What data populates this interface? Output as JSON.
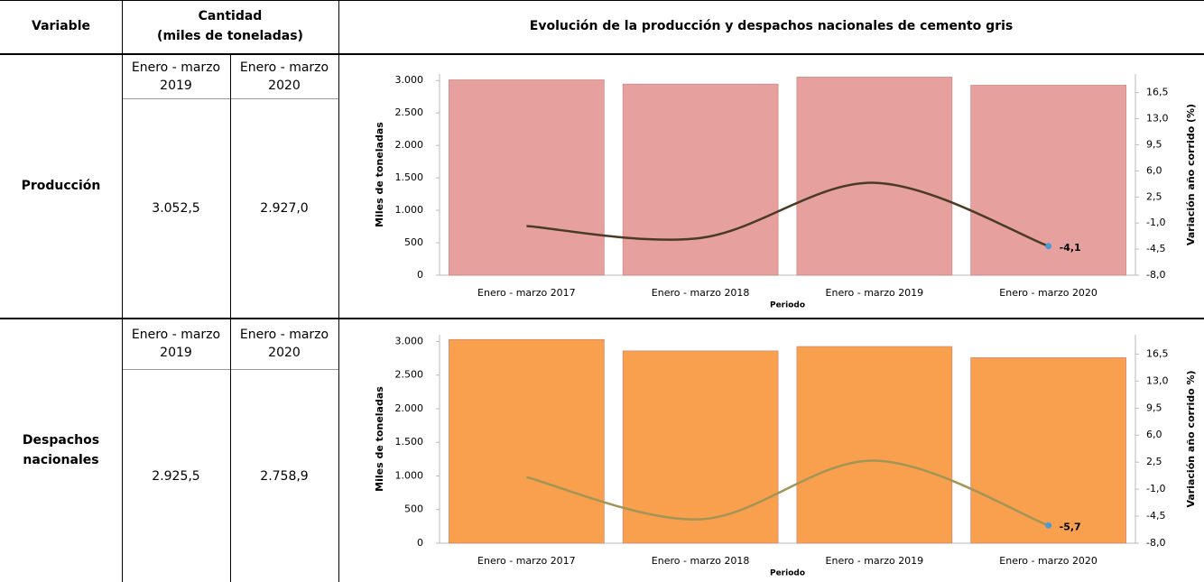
{
  "table": {
    "headers": {
      "variable": "Variable",
      "cantidad": "Cantidad",
      "unidad": "(miles de toneladas)",
      "grafico": "Evolución de la producción y despachos nacionales de cemento gris"
    },
    "rows": [
      {
        "variable": "Producción",
        "periods": [
          "Enero - marzo 2019",
          "Enero - marzo 2020"
        ],
        "values": [
          "3.052,5",
          "2.927,0"
        ]
      },
      {
        "variable": "Despachos nacionales",
        "periods": [
          "Enero - marzo 2019",
          "Enero - marzo 2020"
        ],
        "values": [
          "2.925,5",
          "2.758,9"
        ]
      }
    ]
  },
  "chart_data": [
    {
      "type": "bar",
      "x_label": "Periodo",
      "y_label": "Miles de toneladas",
      "y2_label": "Variación año corrido  (%)",
      "categories": [
        "Enero - marzo 2017",
        "Enero - marzo 2018",
        "Enero - marzo 2019",
        "Enero - marzo 2020"
      ],
      "series": [
        {
          "type": "bar",
          "color": "#e6a09e",
          "values": [
            3010,
            2945,
            3052.5,
            2927
          ]
        },
        {
          "type": "line",
          "axis": "y2",
          "color": "#4a3b24",
          "marker_color": "#4a9ad4",
          "label_color": "#1f3d7a",
          "values": [
            -1.4,
            -3.0,
            4.4,
            -4.1
          ],
          "value_labels": [
            null,
            null,
            null,
            "-4,1"
          ]
        }
      ],
      "ylim": [
        0,
        3100
      ],
      "yticks": [
        0,
        {
          "value": 500,
          "label": "500"
        },
        {
          "value": 1000,
          "label": "1.000"
        },
        {
          "value": 1500,
          "label": "1.500"
        },
        {
          "value": 2000,
          "label": "2.000"
        },
        {
          "value": 2500,
          "label": "2.500"
        },
        {
          "value": 3000,
          "label": "3.000"
        }
      ],
      "y2lim": [
        -8,
        19
      ],
      "y2ticks": [
        {
          "value": -8,
          "label": "-8,0"
        },
        {
          "value": -4.5,
          "label": "-4,5"
        },
        {
          "value": -1,
          "label": "-1,0"
        },
        {
          "value": 2.5,
          "label": "2,5"
        },
        {
          "value": 6,
          "label": "6,0"
        },
        {
          "value": 9.5,
          "label": "9,5"
        },
        {
          "value": 13,
          "label": "13,0"
        },
        {
          "value": 16.5,
          "label": "16,5"
        }
      ]
    },
    {
      "type": "bar",
      "x_label": "Periodo",
      "y_label": "Miles de toneladas",
      "y2_label": "Variación año corrido  %)",
      "categories": [
        "Enero - marzo 2017",
        "Enero - marzo 2018",
        "Enero - marzo 2019",
        "Enero - marzo 2020"
      ],
      "series": [
        {
          "type": "bar",
          "color": "#f9a04e",
          "values": [
            3030,
            2860,
            2925.5,
            2758.9
          ]
        },
        {
          "type": "line",
          "axis": "y2",
          "color": "#a39457",
          "marker_color": "#4a9ad4",
          "label_color": "#000000",
          "values": [
            0.55,
            -4.9,
            2.7,
            -5.7
          ],
          "value_labels": [
            null,
            null,
            null,
            "-5,7"
          ]
        }
      ],
      "ylim": [
        0,
        3100
      ],
      "yticks": [
        0,
        {
          "value": 500,
          "label": "500"
        },
        {
          "value": 1000,
          "label": "1.000"
        },
        {
          "value": 1500,
          "label": "1.500"
        },
        {
          "value": 2000,
          "label": "2.000"
        },
        {
          "value": 2500,
          "label": "2.500"
        },
        {
          "value": 3000,
          "label": "3.000"
        }
      ],
      "y2lim": [
        -8,
        19
      ],
      "y2ticks": [
        {
          "value": -8,
          "label": "-8,0"
        },
        {
          "value": -4.5,
          "label": "-4,5"
        },
        {
          "value": -1,
          "label": "-1,0"
        },
        {
          "value": 2.5,
          "label": "2,5"
        },
        {
          "value": 6,
          "label": "6,0"
        },
        {
          "value": 9.5,
          "label": "9,5"
        },
        {
          "value": 13,
          "label": "13,0"
        },
        {
          "value": 16.5,
          "label": "16,5"
        }
      ]
    }
  ]
}
